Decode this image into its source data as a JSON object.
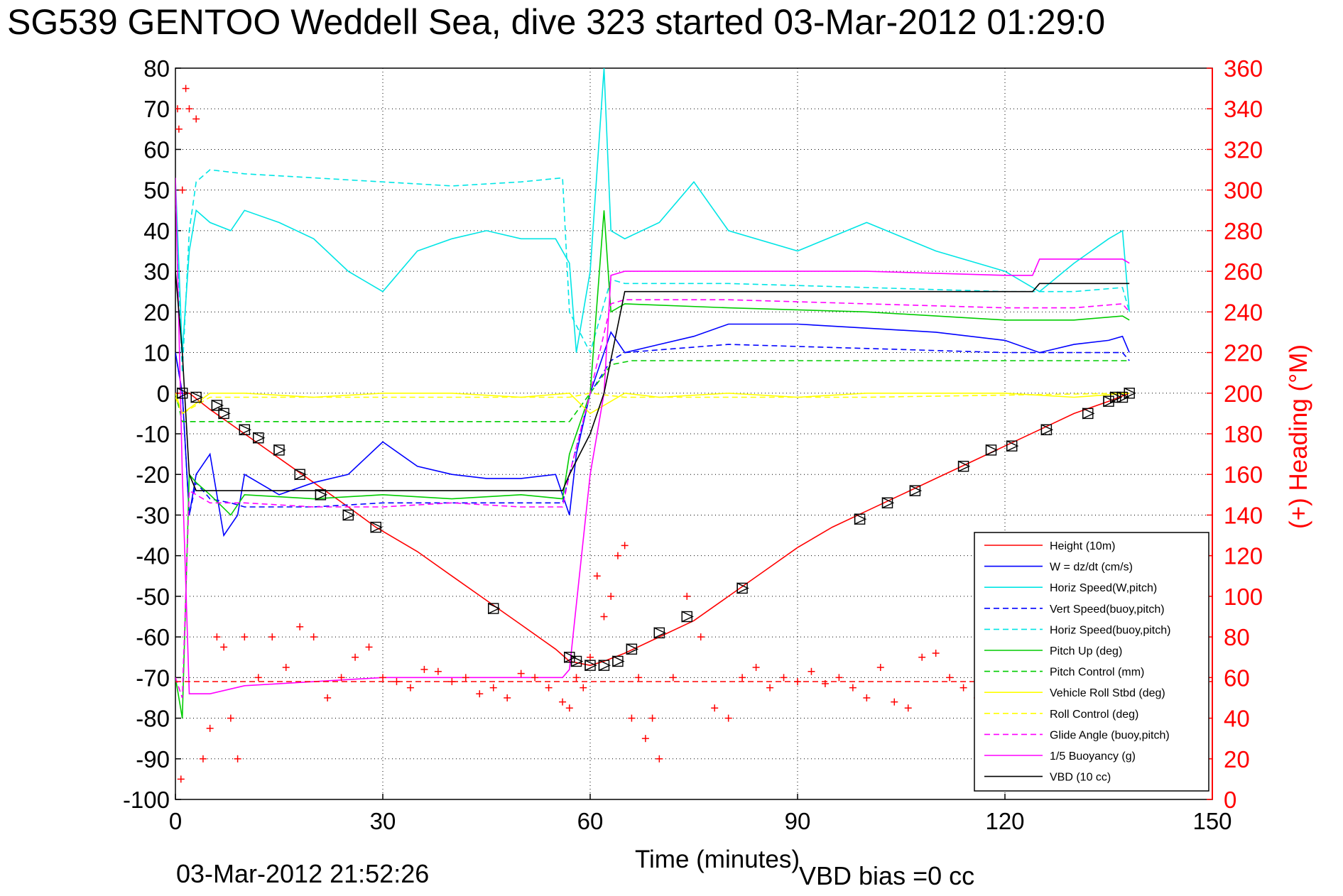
{
  "chart_data": {
    "type": "line",
    "title": "SG539 GENTOO Weddell Sea, dive 323 started 03-Mar-2012 01:29:0",
    "xlabel": "Time (minutes)",
    "ylabel": "",
    "ylabel_right": "(+) Heading (°M)",
    "xlim": [
      0,
      150
    ],
    "ylim": [
      -100,
      80
    ],
    "ylim_right": [
      0,
      360
    ],
    "x_ticks": [
      0,
      30,
      60,
      90,
      120,
      150
    ],
    "y_ticks": [
      -100,
      -90,
      -80,
      -70,
      -60,
      -50,
      -40,
      -30,
      -20,
      -10,
      0,
      10,
      20,
      30,
      40,
      50,
      60,
      70,
      80
    ],
    "y_ticks_right": [
      0,
      20,
      40,
      60,
      80,
      100,
      120,
      140,
      160,
      180,
      200,
      220,
      240,
      260,
      280,
      300,
      320,
      340,
      360
    ],
    "grid": true,
    "legend_position": "bottom-right",
    "footer_left": "03-Mar-2012 21:52:26",
    "footer_right": "VBD bias =0 cc",
    "series": [
      {
        "name": "Height (10m)",
        "color": "#ff0000",
        "style": "solid",
        "x": [
          0,
          1,
          2,
          5,
          10,
          15,
          20,
          25,
          29,
          35,
          40,
          45,
          50,
          55,
          57,
          60,
          62,
          65,
          70,
          75,
          80,
          85,
          90,
          95,
          100,
          105,
          110,
          115,
          120,
          125,
          130,
          135,
          138
        ],
        "y": [
          0,
          0,
          0,
          -4,
          -10,
          -16,
          -22,
          -28,
          -33,
          -39,
          -45,
          -51,
          -57,
          -63,
          -66,
          -67,
          -66,
          -64,
          -60,
          -56,
          -50,
          -44,
          -38,
          -33,
          -29,
          -25,
          -21,
          -17,
          -13,
          -9,
          -5,
          -2,
          0
        ]
      },
      {
        "name": "W = dz/dt (cm/s)",
        "color": "#0000ff",
        "style": "solid",
        "x": [
          0,
          1,
          2,
          3,
          5,
          7,
          9,
          10,
          15,
          20,
          25,
          30,
          35,
          40,
          45,
          50,
          55,
          57,
          58,
          60,
          62,
          63,
          65,
          70,
          75,
          80,
          90,
          100,
          110,
          120,
          125,
          130,
          135,
          137,
          138
        ],
        "y": [
          10,
          0,
          -30,
          -20,
          -15,
          -35,
          -30,
          -20,
          -25,
          -22,
          -20,
          -12,
          -18,
          -20,
          -21,
          -21,
          -20,
          -30,
          -15,
          0,
          10,
          15,
          10,
          12,
          14,
          17,
          17,
          16,
          15,
          13,
          10,
          12,
          13,
          14,
          10
        ]
      },
      {
        "name": "Horiz Speed(W,pitch)",
        "color": "#00e5e5",
        "style": "solid",
        "x": [
          0,
          1,
          2,
          3,
          5,
          8,
          10,
          15,
          20,
          25,
          30,
          35,
          40,
          45,
          50,
          55,
          57,
          58,
          60,
          62,
          63,
          65,
          70,
          75,
          80,
          90,
          100,
          110,
          120,
          125,
          130,
          135,
          137,
          138
        ],
        "y": [
          53,
          10,
          35,
          45,
          42,
          40,
          45,
          42,
          38,
          30,
          25,
          35,
          38,
          40,
          38,
          38,
          32,
          10,
          30,
          80,
          40,
          38,
          42,
          52,
          40,
          35,
          42,
          35,
          30,
          25,
          32,
          38,
          40,
          20
        ]
      },
      {
        "name": "Vert Speed(buoy,pitch)",
        "color": "#0000ff",
        "style": "dashed",
        "x": [
          0,
          1,
          2,
          3,
          5,
          8,
          10,
          20,
          30,
          40,
          50,
          56,
          57,
          60,
          63,
          65,
          80,
          100,
          120,
          130,
          137,
          138
        ],
        "y": [
          10,
          0,
          -30,
          -22,
          -26,
          -27,
          -28,
          -28,
          -27,
          -27,
          -27,
          -27,
          -20,
          0,
          8,
          10,
          12,
          11,
          10,
          10,
          10,
          8
        ]
      },
      {
        "name": "Horiz Speed(buoy,pitch)",
        "color": "#00e5e5",
        "style": "dashed",
        "x": [
          0,
          1,
          2,
          3,
          5,
          10,
          20,
          30,
          40,
          50,
          56,
          57,
          60,
          63,
          65,
          80,
          100,
          120,
          130,
          137,
          138
        ],
        "y": [
          50,
          5,
          40,
          52,
          55,
          54,
          53,
          52,
          51,
          52,
          53,
          20,
          10,
          28,
          27,
          27,
          26,
          25,
          25,
          26,
          20
        ]
      },
      {
        "name": "Pitch Up (deg)",
        "color": "#00cc00",
        "style": "solid",
        "x": [
          0,
          1,
          2,
          3,
          5,
          8,
          10,
          20,
          30,
          40,
          50,
          56,
          57,
          60,
          62,
          63,
          65,
          80,
          100,
          120,
          130,
          137,
          138
        ],
        "y": [
          -70,
          -80,
          -20,
          -22,
          -25,
          -30,
          -25,
          -26,
          -25,
          -26,
          -25,
          -26,
          -15,
          0,
          45,
          20,
          22,
          21,
          20,
          18,
          18,
          19,
          18
        ]
      },
      {
        "name": "Pitch Control (mm)",
        "color": "#00cc00",
        "style": "dashed",
        "x": [
          0,
          1,
          2,
          3,
          10,
          30,
          57,
          60,
          63,
          66,
          100,
          138
        ],
        "y": [
          0,
          -7,
          -7,
          -7,
          -7,
          -7,
          -7,
          0,
          7,
          8,
          8,
          8
        ]
      },
      {
        "name": "Vehicle Roll Stbd (deg)",
        "color": "#ffff00",
        "style": "solid",
        "x": [
          0,
          1,
          5,
          10,
          20,
          30,
          40,
          50,
          57,
          60,
          65,
          70,
          80,
          90,
          100,
          110,
          120,
          130,
          138
        ],
        "y": [
          0,
          -5,
          0,
          0,
          -1,
          0,
          0,
          -1,
          0,
          -5,
          0,
          -1,
          0,
          -1,
          0,
          0,
          0,
          -1,
          0
        ]
      },
      {
        "name": "Roll Control (deg)",
        "color": "#ffff00",
        "style": "dashed",
        "x": [
          0,
          1,
          5,
          10,
          30,
          57,
          60,
          65,
          100,
          138
        ],
        "y": [
          -1,
          -5,
          -1,
          -1,
          -1,
          -1,
          0,
          -1,
          -1,
          0
        ]
      },
      {
        "name": "Glide Angle (buoy,pitch)",
        "color": "#ff00ff",
        "style": "dashed",
        "x": [
          0,
          1,
          2,
          3,
          5,
          10,
          20,
          30,
          40,
          50,
          56,
          57,
          60,
          63,
          65,
          80,
          100,
          120,
          130,
          137,
          138
        ],
        "y": [
          -70,
          -75,
          -24,
          -25,
          -27,
          -27,
          -28,
          -28,
          -27,
          -28,
          -28,
          -20,
          0,
          22,
          23,
          23,
          22,
          21,
          21,
          22,
          20
        ]
      },
      {
        "name": "1/5 Buoyancy (g)",
        "color": "#ff00ff",
        "style": "solid",
        "x": [
          0,
          1,
          2,
          3,
          5,
          10,
          20,
          30,
          50,
          56,
          57,
          60,
          62,
          63,
          65,
          80,
          100,
          120,
          124,
          125,
          130,
          137,
          138
        ],
        "y": [
          53,
          -20,
          -74,
          -74,
          -74,
          -72,
          -71,
          -70,
          -70,
          -70,
          -68,
          -20,
          0,
          29,
          30,
          30,
          30,
          29,
          29,
          33,
          33,
          33,
          32
        ]
      },
      {
        "name": "VBD (10 cc)",
        "color": "#000000",
        "style": "solid",
        "x": [
          0,
          1,
          2,
          3,
          5,
          10,
          30,
          56,
          57,
          60,
          62,
          65,
          80,
          100,
          124,
          125,
          138
        ],
        "y": [
          30,
          10,
          -20,
          -24,
          -24,
          -24,
          -24,
          -24,
          -20,
          -10,
          0,
          25,
          25,
          25,
          25,
          27,
          27
        ]
      }
    ],
    "heading_series": {
      "name": "(+) Heading",
      "axis": "right",
      "color": "#ff0000",
      "marker": "+",
      "x": [
        0.3,
        0.5,
        0.8,
        1,
        1.5,
        2,
        3,
        4,
        5,
        6,
        7,
        8,
        9,
        10,
        12,
        14,
        16,
        18,
        20,
        22,
        24,
        26,
        28,
        30,
        32,
        34,
        36,
        38,
        40,
        42,
        44,
        46,
        48,
        50,
        52,
        54,
        56,
        57,
        58,
        59,
        60,
        61,
        62,
        63,
        64,
        65,
        66,
        67,
        68,
        69,
        70,
        72,
        74,
        76,
        78,
        80,
        82,
        84,
        86,
        88,
        90,
        92,
        94,
        96,
        98,
        100,
        102,
        104,
        106,
        108,
        110,
        112,
        114,
        116,
        118
      ],
      "y": [
        340,
        330,
        10,
        300,
        350,
        340,
        335,
        20,
        35,
        80,
        75,
        40,
        20,
        80,
        60,
        80,
        65,
        85,
        80,
        50,
        60,
        70,
        75,
        60,
        58,
        55,
        64,
        63,
        58,
        60,
        52,
        55,
        50,
        62,
        60,
        55,
        48,
        45,
        60,
        55,
        70,
        110,
        90,
        100,
        120,
        125,
        40,
        60,
        30,
        40,
        20,
        60,
        100,
        80,
        45,
        40,
        60,
        65,
        55,
        60,
        58,
        63,
        57,
        60,
        55,
        50,
        65,
        48,
        45,
        70,
        72,
        60,
        55,
        50,
        45
      ]
    },
    "heading_reference": {
      "style": "dashed",
      "color": "#ff0000",
      "y": 58,
      "axis": "right"
    },
    "markers": {
      "color": "#000000",
      "shape": "triangle-square",
      "x": [
        1,
        3,
        6,
        7,
        10,
        12,
        15,
        18,
        21,
        25,
        29,
        46,
        57,
        58,
        60,
        62,
        64,
        66,
        70,
        74,
        82,
        99,
        103,
        107,
        114,
        118,
        121,
        126,
        132,
        135,
        136,
        137,
        138
      ],
      "y": [
        0,
        -1,
        -3,
        -5,
        -9,
        -11,
        -14,
        -20,
        -25,
        -30,
        -33,
        -53,
        -65,
        -66,
        -67,
        -67,
        -66,
        -63,
        -59,
        -55,
        -48,
        -31,
        -27,
        -24,
        -18,
        -14,
        -13,
        -9,
        -5,
        -2,
        -1,
        -1,
        0
      ]
    }
  }
}
